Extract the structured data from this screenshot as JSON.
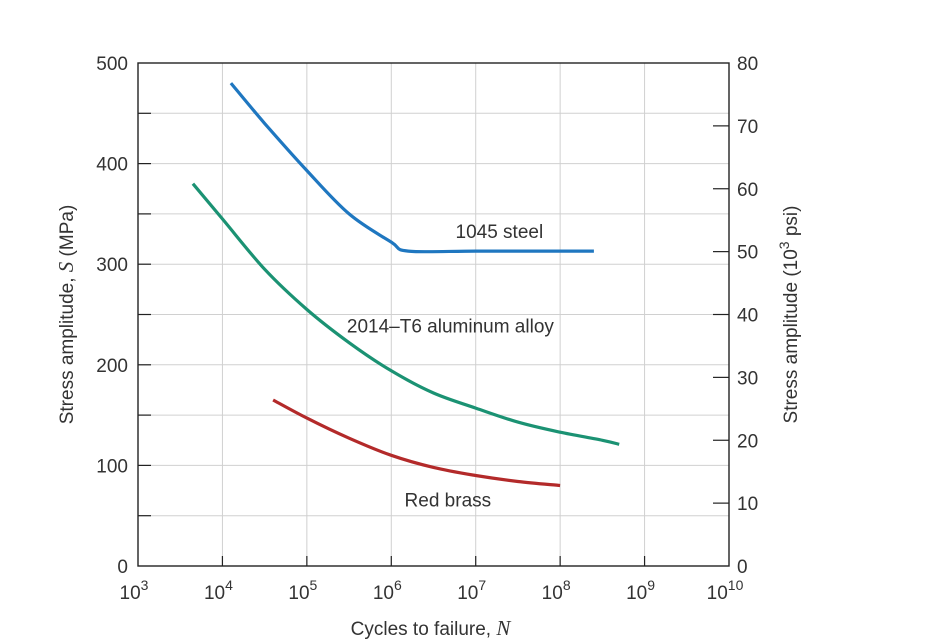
{
  "chart_data": {
    "type": "line",
    "title": "",
    "xlabel": "Cycles to failure, N",
    "ylabel": "Stress amplitude, S (MPa)",
    "ylabel_right": "Stress amplitude (10^3 psi)",
    "x_scale": "log",
    "xlim": [
      3,
      10
    ],
    "ylim": [
      0,
      500
    ],
    "y_right_lim": [
      0,
      80
    ],
    "x_tick_labels": [
      {
        "base": "10",
        "exp": "3"
      },
      {
        "base": "10",
        "exp": "4"
      },
      {
        "base": "10",
        "exp": "5"
      },
      {
        "base": "10",
        "exp": "6"
      },
      {
        "base": "10",
        "exp": "7"
      },
      {
        "base": "10",
        "exp": "8"
      },
      {
        "base": "10",
        "exp": "9"
      },
      {
        "base": "10",
        "exp": "10"
      }
    ],
    "y_ticks": [
      0,
      100,
      200,
      300,
      400,
      500
    ],
    "y_ticks_labels": [
      "0",
      "100",
      "200",
      "300",
      "400",
      "500"
    ],
    "y_right_ticks": [
      0,
      10,
      20,
      30,
      40,
      50,
      60,
      70,
      80
    ],
    "y_right_ticks_labels": [
      "0",
      "10",
      "20",
      "30",
      "40",
      "50",
      "60",
      "70",
      "80"
    ],
    "grid": true,
    "series": [
      {
        "name": "1045 steel",
        "color": "#1f77c0",
        "points": [
          [
            4.1,
            480
          ],
          [
            4.5,
            440
          ],
          [
            5.0,
            393
          ],
          [
            5.5,
            350
          ],
          [
            6.0,
            322
          ],
          [
            6.2,
            313
          ],
          [
            7.0,
            313
          ],
          [
            8.0,
            313
          ],
          [
            8.4,
            313
          ]
        ]
      },
      {
        "name": "2014–T6 aluminum alloy",
        "color": "#1b9273",
        "points": [
          [
            3.65,
            380
          ],
          [
            4.0,
            345
          ],
          [
            4.5,
            295
          ],
          [
            5.0,
            255
          ],
          [
            5.5,
            222
          ],
          [
            6.0,
            194
          ],
          [
            6.5,
            172
          ],
          [
            7.0,
            157
          ],
          [
            7.5,
            143
          ],
          [
            8.0,
            133
          ],
          [
            8.5,
            125
          ],
          [
            8.7,
            121
          ]
        ]
      },
      {
        "name": "Red brass",
        "color": "#b32a2a",
        "points": [
          [
            4.6,
            165
          ],
          [
            5.0,
            147
          ],
          [
            5.5,
            127
          ],
          [
            6.0,
            110
          ],
          [
            6.5,
            98
          ],
          [
            7.0,
            90
          ],
          [
            7.5,
            84
          ],
          [
            8.0,
            80
          ]
        ]
      }
    ],
    "annotations": [
      {
        "text": "1045 steel",
        "x": 7.28,
        "y": 326
      },
      {
        "text": "2014–T6 aluminum alloy",
        "x": 6.7,
        "y": 232
      },
      {
        "text": "Red brass",
        "x": 6.67,
        "y": 59
      }
    ],
    "style": {
      "grid_color": "#d0d0d0",
      "axis_color": "#222222",
      "text_color": "#333333"
    }
  }
}
